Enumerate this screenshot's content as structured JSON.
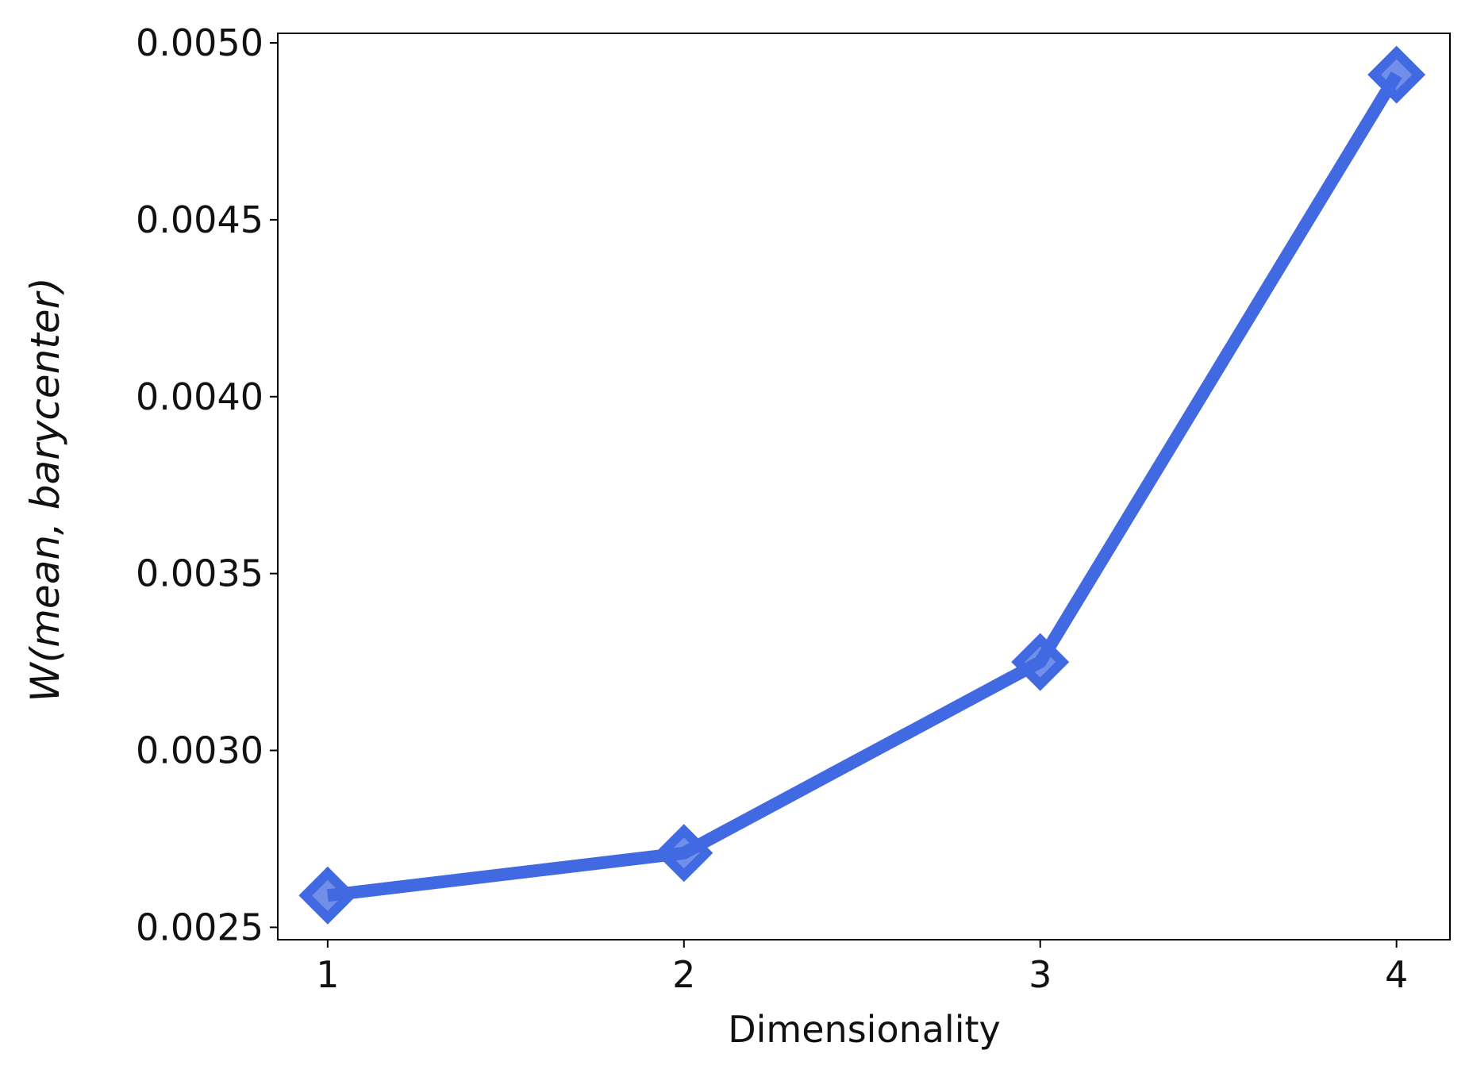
{
  "chart_data": {
    "type": "line",
    "x_label": "Dimensionality",
    "y_label": "W(mean, barycenter)",
    "x": [
      1,
      2,
      3,
      4
    ],
    "series": [
      {
        "color": "#4169e1",
        "values": [
          0.00259,
          0.00271,
          0.00325,
          0.00491
        ]
      }
    ],
    "xlim": [
      0.86,
      4.15
    ],
    "ylim": [
      0.002465,
      0.005027
    ],
    "xticks": [
      1,
      2,
      3,
      4
    ],
    "yticks": [
      0.0025,
      {
        "value": 0.003,
        "label": "0.0030"
      },
      0.0035,
      {
        "value": 0.004,
        "label": "0.0040"
      },
      0.0045,
      {
        "value": 0.005,
        "label": "0.0050"
      }
    ],
    "grid": false
  }
}
